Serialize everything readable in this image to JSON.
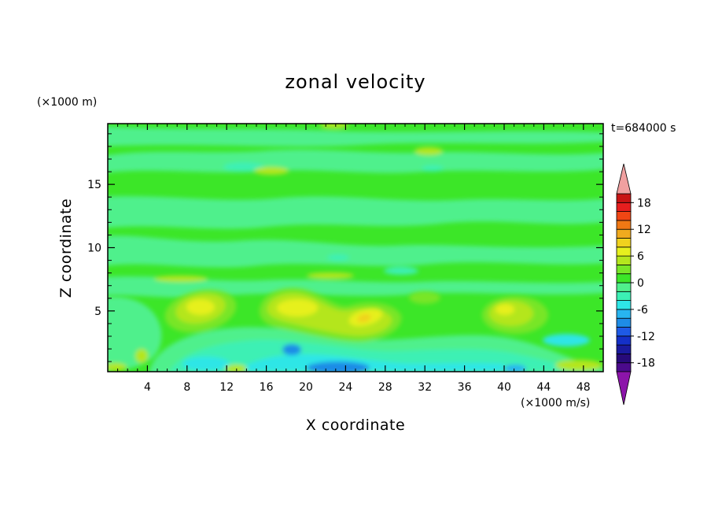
{
  "chart_data": {
    "type": "heatmap",
    "title": "zonal velocity",
    "xlabel": "X coordinate",
    "ylabel": "Z coordinate",
    "x_unit": "(×1000 m/s)",
    "y_unit": "(×1000 m)",
    "time_label": "t=684000 s",
    "xlim": [
      0,
      50
    ],
    "ylim": [
      0.2,
      19.8
    ],
    "x_ticks": [
      4,
      8,
      12,
      16,
      20,
      24,
      28,
      32,
      36,
      40,
      44,
      48
    ],
    "y_ticks": [
      5,
      10,
      15
    ],
    "colorbar": {
      "range": [
        -20,
        20
      ],
      "step": 2,
      "tick_values": [
        18,
        12,
        6,
        0,
        -6,
        -12,
        -18
      ],
      "extend": "both",
      "colors": [
        "#4b0a8c",
        "#270a7a",
        "#1a1a9e",
        "#1430c8",
        "#1e5ae6",
        "#1e8ce6",
        "#28b4f0",
        "#2ee6e6",
        "#3cf0b4",
        "#50f08c",
        "#3ce628",
        "#78e628",
        "#b4e61e",
        "#e6f01e",
        "#f0d21e",
        "#f0aa1e",
        "#f07814",
        "#f04614",
        "#e61e1e",
        "#c81414"
      ],
      "extend_low_color": "#8c14aa",
      "extend_high_color": "#f0a0a0"
    },
    "features": [
      {
        "x": 9.5,
        "z": 5.1,
        "value": 7
      },
      {
        "x": 19.5,
        "z": 5.0,
        "value": 7
      },
      {
        "x": 26.0,
        "z": 4.5,
        "value": 7
      },
      {
        "x": 41.5,
        "z": 4.8,
        "value": 5
      },
      {
        "x": 18.5,
        "z": 1.6,
        "value": -8
      },
      {
        "x": 25.5,
        "z": 0.6,
        "value": -9
      },
      {
        "x": 10.5,
        "z": 1.0,
        "value": -5
      },
      {
        "x": 40.5,
        "z": 0.5,
        "value": -5
      },
      {
        "x": 46.5,
        "z": 0.6,
        "value": 3
      },
      {
        "x": 2.0,
        "z": 0.6,
        "value": 3
      }
    ]
  }
}
